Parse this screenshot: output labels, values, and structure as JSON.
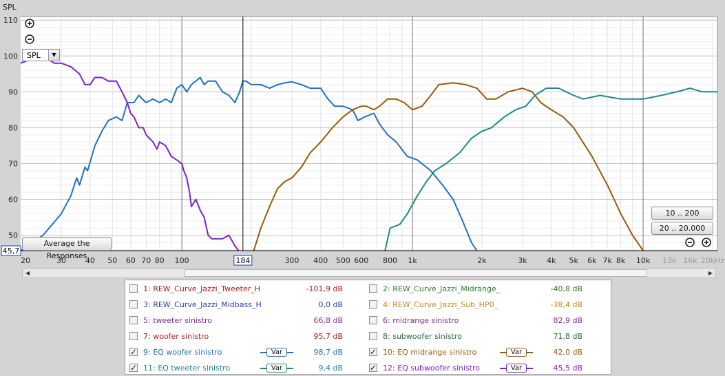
{
  "chart_data": {
    "type": "line",
    "ylabel": "SPL",
    "x_scale": "log",
    "xlim": [
      20,
      21000
    ],
    "ylim": [
      45.7,
      111
    ],
    "x_ticks": [
      {
        "v": 20,
        "label": "20"
      },
      {
        "v": 30,
        "label": "30"
      },
      {
        "v": 40,
        "label": "40"
      },
      {
        "v": 50,
        "label": "50"
      },
      {
        "v": 60,
        "label": "60"
      },
      {
        "v": 70,
        "label": "70"
      },
      {
        "v": 80,
        "label": "80"
      },
      {
        "v": 100,
        "label": "100"
      },
      {
        "v": 300,
        "label": "300"
      },
      {
        "v": 400,
        "label": "400"
      },
      {
        "v": 500,
        "label": "500"
      },
      {
        "v": 600,
        "label": "600"
      },
      {
        "v": 800,
        "label": "800"
      },
      {
        "v": 1000,
        "label": "1k"
      },
      {
        "v": 2000,
        "label": "2k"
      },
      {
        "v": 3000,
        "label": "3k"
      },
      {
        "v": 4000,
        "label": "4k"
      },
      {
        "v": 5000,
        "label": "5k"
      },
      {
        "v": 6000,
        "label": "6k"
      },
      {
        "v": 7000,
        "label": "7k"
      },
      {
        "v": 8000,
        "label": "8k"
      },
      {
        "v": 10000,
        "label": "10k"
      },
      {
        "v": 13000,
        "label": "13k",
        "muted": true
      },
      {
        "v": 16000,
        "label": "16k",
        "muted": true
      },
      {
        "v": 20000,
        "label": "20kHz",
        "muted": true
      }
    ],
    "y_ticks": [
      {
        "v": 110,
        "label": "110"
      },
      {
        "v": 100,
        "label": "100"
      },
      {
        "v": 90,
        "label": "90"
      },
      {
        "v": 80,
        "label": "80"
      },
      {
        "v": 70,
        "label": "70"
      },
      {
        "v": 60,
        "label": "60"
      },
      {
        "v": 50,
        "label": "50"
      }
    ],
    "cursor": {
      "x": 184,
      "x_label": "184",
      "y": 45.7,
      "y_label": "45,7"
    },
    "grid": true,
    "series": [
      {
        "name": "9: EQ woofer sinistro",
        "color": "#1f6fc5",
        "points": [
          [
            20,
            45.7
          ],
          [
            25,
            50
          ],
          [
            30,
            56
          ],
          [
            33,
            61
          ],
          [
            35,
            66
          ],
          [
            36,
            64
          ],
          [
            38,
            69
          ],
          [
            39,
            68
          ],
          [
            42,
            75
          ],
          [
            45,
            79
          ],
          [
            48,
            82
          ],
          [
            52,
            83
          ],
          [
            55,
            82
          ],
          [
            58,
            87
          ],
          [
            62,
            87
          ],
          [
            65,
            89
          ],
          [
            70,
            87
          ],
          [
            75,
            88
          ],
          [
            80,
            87
          ],
          [
            85,
            88
          ],
          [
            90,
            87
          ],
          [
            95,
            91
          ],
          [
            100,
            92
          ],
          [
            105,
            90
          ],
          [
            110,
            92
          ],
          [
            115,
            93
          ],
          [
            120,
            94
          ],
          [
            125,
            92
          ],
          [
            130,
            93
          ],
          [
            140,
            93
          ],
          [
            150,
            90
          ],
          [
            160,
            89
          ],
          [
            170,
            87
          ],
          [
            178,
            90
          ],
          [
            184,
            93
          ],
          [
            190,
            93
          ],
          [
            200,
            92
          ],
          [
            220,
            92
          ],
          [
            240,
            91
          ],
          [
            260,
            92
          ],
          [
            280,
            92.5
          ],
          [
            300,
            92.8
          ],
          [
            330,
            92
          ],
          [
            360,
            91
          ],
          [
            400,
            91
          ],
          [
            430,
            88
          ],
          [
            460,
            86
          ],
          [
            500,
            86
          ],
          [
            550,
            85
          ],
          [
            580,
            82
          ],
          [
            620,
            83
          ],
          [
            680,
            84
          ],
          [
            720,
            81
          ],
          [
            780,
            78
          ],
          [
            850,
            76
          ],
          [
            950,
            72
          ],
          [
            1050,
            71
          ],
          [
            1200,
            68
          ],
          [
            1350,
            64
          ],
          [
            1500,
            60
          ],
          [
            1650,
            54
          ],
          [
            1800,
            48
          ],
          [
            1900,
            45.7
          ]
        ]
      },
      {
        "name": "12: EQ subwoofer sinistro",
        "color": "#7f1fd0",
        "points": [
          [
            20,
            98
          ],
          [
            22,
            99
          ],
          [
            25,
            100
          ],
          [
            28,
            98
          ],
          [
            30,
            98
          ],
          [
            33,
            97
          ],
          [
            36,
            95
          ],
          [
            38,
            92
          ],
          [
            40,
            92
          ],
          [
            42,
            94
          ],
          [
            45,
            94
          ],
          [
            48,
            93
          ],
          [
            52,
            93
          ],
          [
            55,
            90
          ],
          [
            58,
            87
          ],
          [
            60,
            84
          ],
          [
            62,
            83
          ],
          [
            65,
            80
          ],
          [
            68,
            80
          ],
          [
            70,
            78
          ],
          [
            75,
            76
          ],
          [
            78,
            74
          ],
          [
            80,
            76
          ],
          [
            85,
            75
          ],
          [
            90,
            72
          ],
          [
            95,
            71
          ],
          [
            100,
            70
          ],
          [
            102,
            68
          ],
          [
            105,
            66
          ],
          [
            108,
            62
          ],
          [
            110,
            58
          ],
          [
            115,
            60
          ],
          [
            120,
            57
          ],
          [
            125,
            55
          ],
          [
            130,
            50
          ],
          [
            135,
            49
          ],
          [
            140,
            49
          ],
          [
            150,
            49
          ],
          [
            160,
            50
          ],
          [
            170,
            47
          ],
          [
            176,
            45.7
          ]
        ]
      },
      {
        "name": "10: EQ midrange sinistro",
        "color": "#9a5806",
        "points": [
          [
            205,
            45.7
          ],
          [
            220,
            52
          ],
          [
            240,
            58
          ],
          [
            260,
            63
          ],
          [
            280,
            65
          ],
          [
            300,
            66
          ],
          [
            330,
            69
          ],
          [
            360,
            73
          ],
          [
            400,
            76
          ],
          [
            450,
            80
          ],
          [
            500,
            83
          ],
          [
            550,
            85
          ],
          [
            600,
            86
          ],
          [
            630,
            86
          ],
          [
            680,
            85
          ],
          [
            720,
            86
          ],
          [
            780,
            88
          ],
          [
            850,
            88
          ],
          [
            920,
            87
          ],
          [
            1000,
            85
          ],
          [
            1100,
            86
          ],
          [
            1200,
            89
          ],
          [
            1300,
            92
          ],
          [
            1500,
            92.5
          ],
          [
            1700,
            92
          ],
          [
            1900,
            91
          ],
          [
            2100,
            88
          ],
          [
            2300,
            88
          ],
          [
            2600,
            90
          ],
          [
            3000,
            91
          ],
          [
            3300,
            90
          ],
          [
            3600,
            87
          ],
          [
            4000,
            85
          ],
          [
            4500,
            83
          ],
          [
            5000,
            80
          ],
          [
            6000,
            72
          ],
          [
            7000,
            64
          ],
          [
            8000,
            56
          ],
          [
            9000,
            50
          ],
          [
            10000,
            45.7
          ]
        ]
      },
      {
        "name": "11: EQ tweeter sinistro",
        "color": "#198a88",
        "points": [
          [
            760,
            45.7
          ],
          [
            800,
            52
          ],
          [
            880,
            53
          ],
          [
            950,
            56
          ],
          [
            1050,
            61
          ],
          [
            1150,
            65
          ],
          [
            1250,
            68
          ],
          [
            1400,
            70
          ],
          [
            1600,
            73
          ],
          [
            1800,
            77
          ],
          [
            2000,
            79
          ],
          [
            2200,
            80
          ],
          [
            2500,
            83
          ],
          [
            2800,
            85
          ],
          [
            3100,
            86
          ],
          [
            3400,
            89
          ],
          [
            3800,
            91
          ],
          [
            4300,
            91
          ],
          [
            5000,
            89
          ],
          [
            5500,
            88
          ],
          [
            6500,
            89
          ],
          [
            8000,
            88
          ],
          [
            9000,
            88
          ],
          [
            10000,
            88
          ],
          [
            12000,
            89
          ],
          [
            14000,
            90
          ],
          [
            16000,
            91
          ],
          [
            18000,
            90
          ],
          [
            21000,
            90
          ]
        ]
      }
    ]
  },
  "controls": {
    "plot_type": "SPL",
    "average_label": "Average the Responses",
    "zoom_in_icon": "zoom-in-icon",
    "zoom_out_icon": "zoom-out-icon",
    "range_btn_1": "10 .. 200",
    "range_btn_2": "20 .. 20.000"
  },
  "legend": {
    "var_label": "Var",
    "items": [
      {
        "num": "1:",
        "name": "REW_Curve_Jazzi_Tweeter_H",
        "value": "-101,9 dB",
        "checked": false,
        "color": "#b01a1a",
        "value_color": "#b01a1a",
        "var": false
      },
      {
        "num": "2:",
        "name": "REW_Curve_Jazzi_Midrange_",
        "value": "-40,8 dB",
        "checked": false,
        "color": "#2a7a2a",
        "value_color": "#2a7a2a",
        "var": false
      },
      {
        "num": "3:",
        "name": "REW_Curve_Jazzi_Midbass_H",
        "value": "0,0 dB",
        "checked": false,
        "color": "#2a3db0",
        "value_color": "#2a3db0",
        "var": false
      },
      {
        "num": "4:",
        "name": "REW_Curve_Jazzi_Sub_HP0_",
        "value": "-38,4 dB",
        "checked": false,
        "color": "#c98612",
        "value_color": "#c98612",
        "var": false
      },
      {
        "num": "5:",
        "name": "tweeter sinistro",
        "value": "66,8 dB",
        "checked": false,
        "color": "#8a2a9a",
        "value_color": "#8a2a9a",
        "var": false
      },
      {
        "num": "6:",
        "name": "midrange sinistro",
        "value": "82,9 dB",
        "checked": false,
        "color": "#8a2a9a",
        "value_color": "#8a2a9a",
        "var": false
      },
      {
        "num": "7:",
        "name": "woofer sinistro",
        "value": "95,7 dB",
        "checked": false,
        "color": "#b01a1a",
        "value_color": "#b01a1a",
        "var": false
      },
      {
        "num": "8:",
        "name": "subwoofer sinistro",
        "value": "71,8 dB",
        "checked": false,
        "color": "#1f6b3a",
        "value_color": "#1f6b3a",
        "var": false
      },
      {
        "num": "9:",
        "name": "EQ woofer sinistro",
        "value": "98,7 dB",
        "checked": true,
        "color": "#1f6fc5",
        "value_color": "#1f6fc5",
        "var": true
      },
      {
        "num": "10:",
        "name": "EQ midrange sinistro",
        "value": "42,0 dB",
        "checked": true,
        "color": "#9a5806",
        "value_color": "#9a5806",
        "var": true
      },
      {
        "num": "11:",
        "name": "EQ tweeter sinistro",
        "value": "9,4 dB",
        "checked": true,
        "color": "#198a88",
        "value_color": "#198a88",
        "var": true
      },
      {
        "num": "12:",
        "name": "EQ subwoofer sinistro",
        "value": "45,5 dB",
        "checked": true,
        "color": "#7f1fd0",
        "value_color": "#7f1fd0",
        "var": true
      }
    ]
  }
}
